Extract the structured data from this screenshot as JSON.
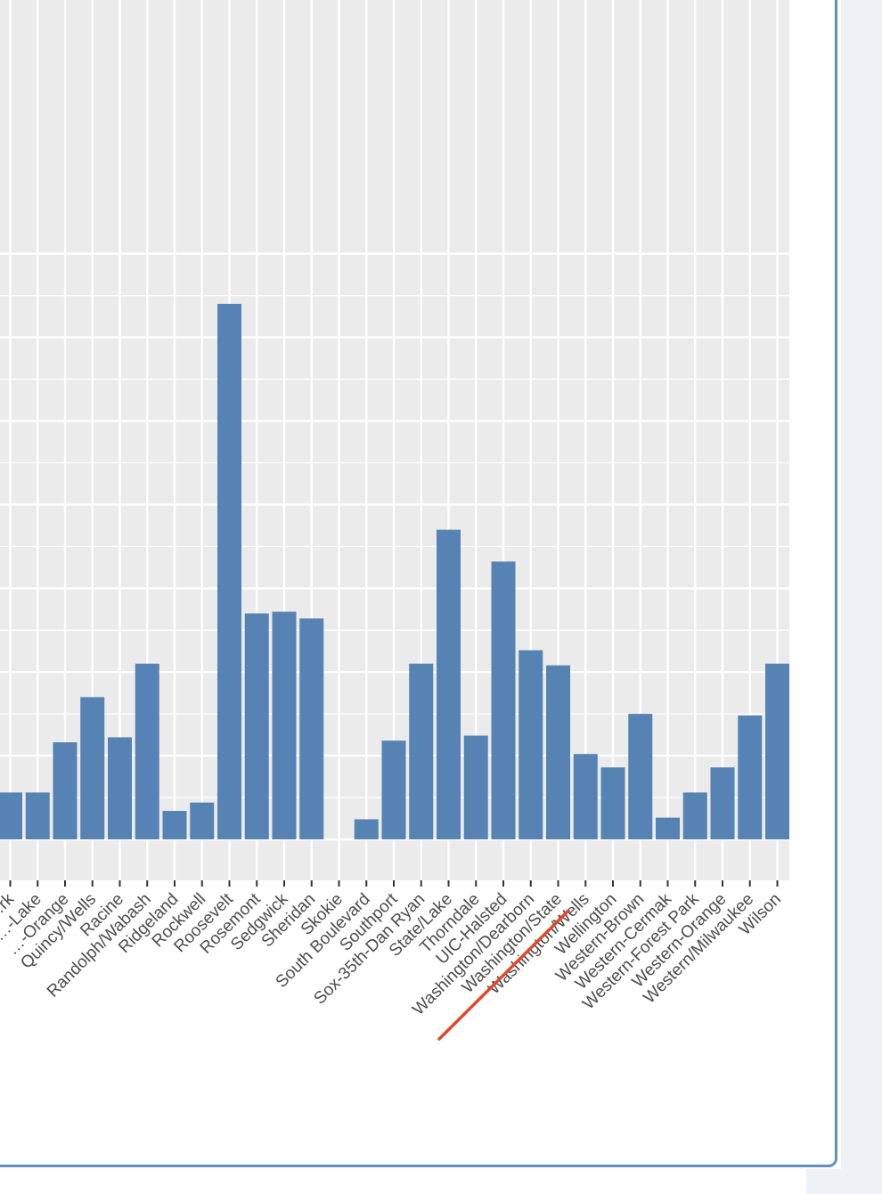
{
  "chart_data": {
    "type": "bar",
    "title": "",
    "xlabel": "",
    "ylabel": "",
    "ylim": [
      0,
      32
    ],
    "grid": true,
    "bar_color": "#5682b4",
    "panel_background": "#ebebeb",
    "categories": [
      "…rk",
      "…-Lake",
      "…-Orange",
      "Quincy/Wells",
      "Racine",
      "Randolph/Wabash",
      "Ridgeland",
      "Rockwell",
      "Roosevelt",
      "Rosemont",
      "Sedgwick",
      "Sheridan",
      "Skokie",
      "South Boulevard",
      "Southport",
      "Sox-35th-Dan Ryan",
      "State/Lake",
      "Thorndale",
      "UIC-Halsted",
      "Washington/Dearborn",
      "Washington/State",
      "Washington/Wells",
      "Wellington",
      "Western-Brown",
      "Western-Cermak",
      "Western-Forest Park",
      "Western-Orange",
      "Western/Milwaukee",
      "Wilson"
    ],
    "values": [
      2.8,
      2.8,
      5.8,
      8.5,
      6.1,
      10.5,
      1.7,
      2.2,
      32.0,
      13.5,
      13.6,
      13.2,
      0,
      1.2,
      5.9,
      10.5,
      18.5,
      6.2,
      16.6,
      11.3,
      10.4,
      5.1,
      4.3,
      7.5,
      1.3,
      2.8,
      4.3,
      7.4,
      10.5
    ]
  },
  "annotation": {
    "color": "#e04a28"
  }
}
